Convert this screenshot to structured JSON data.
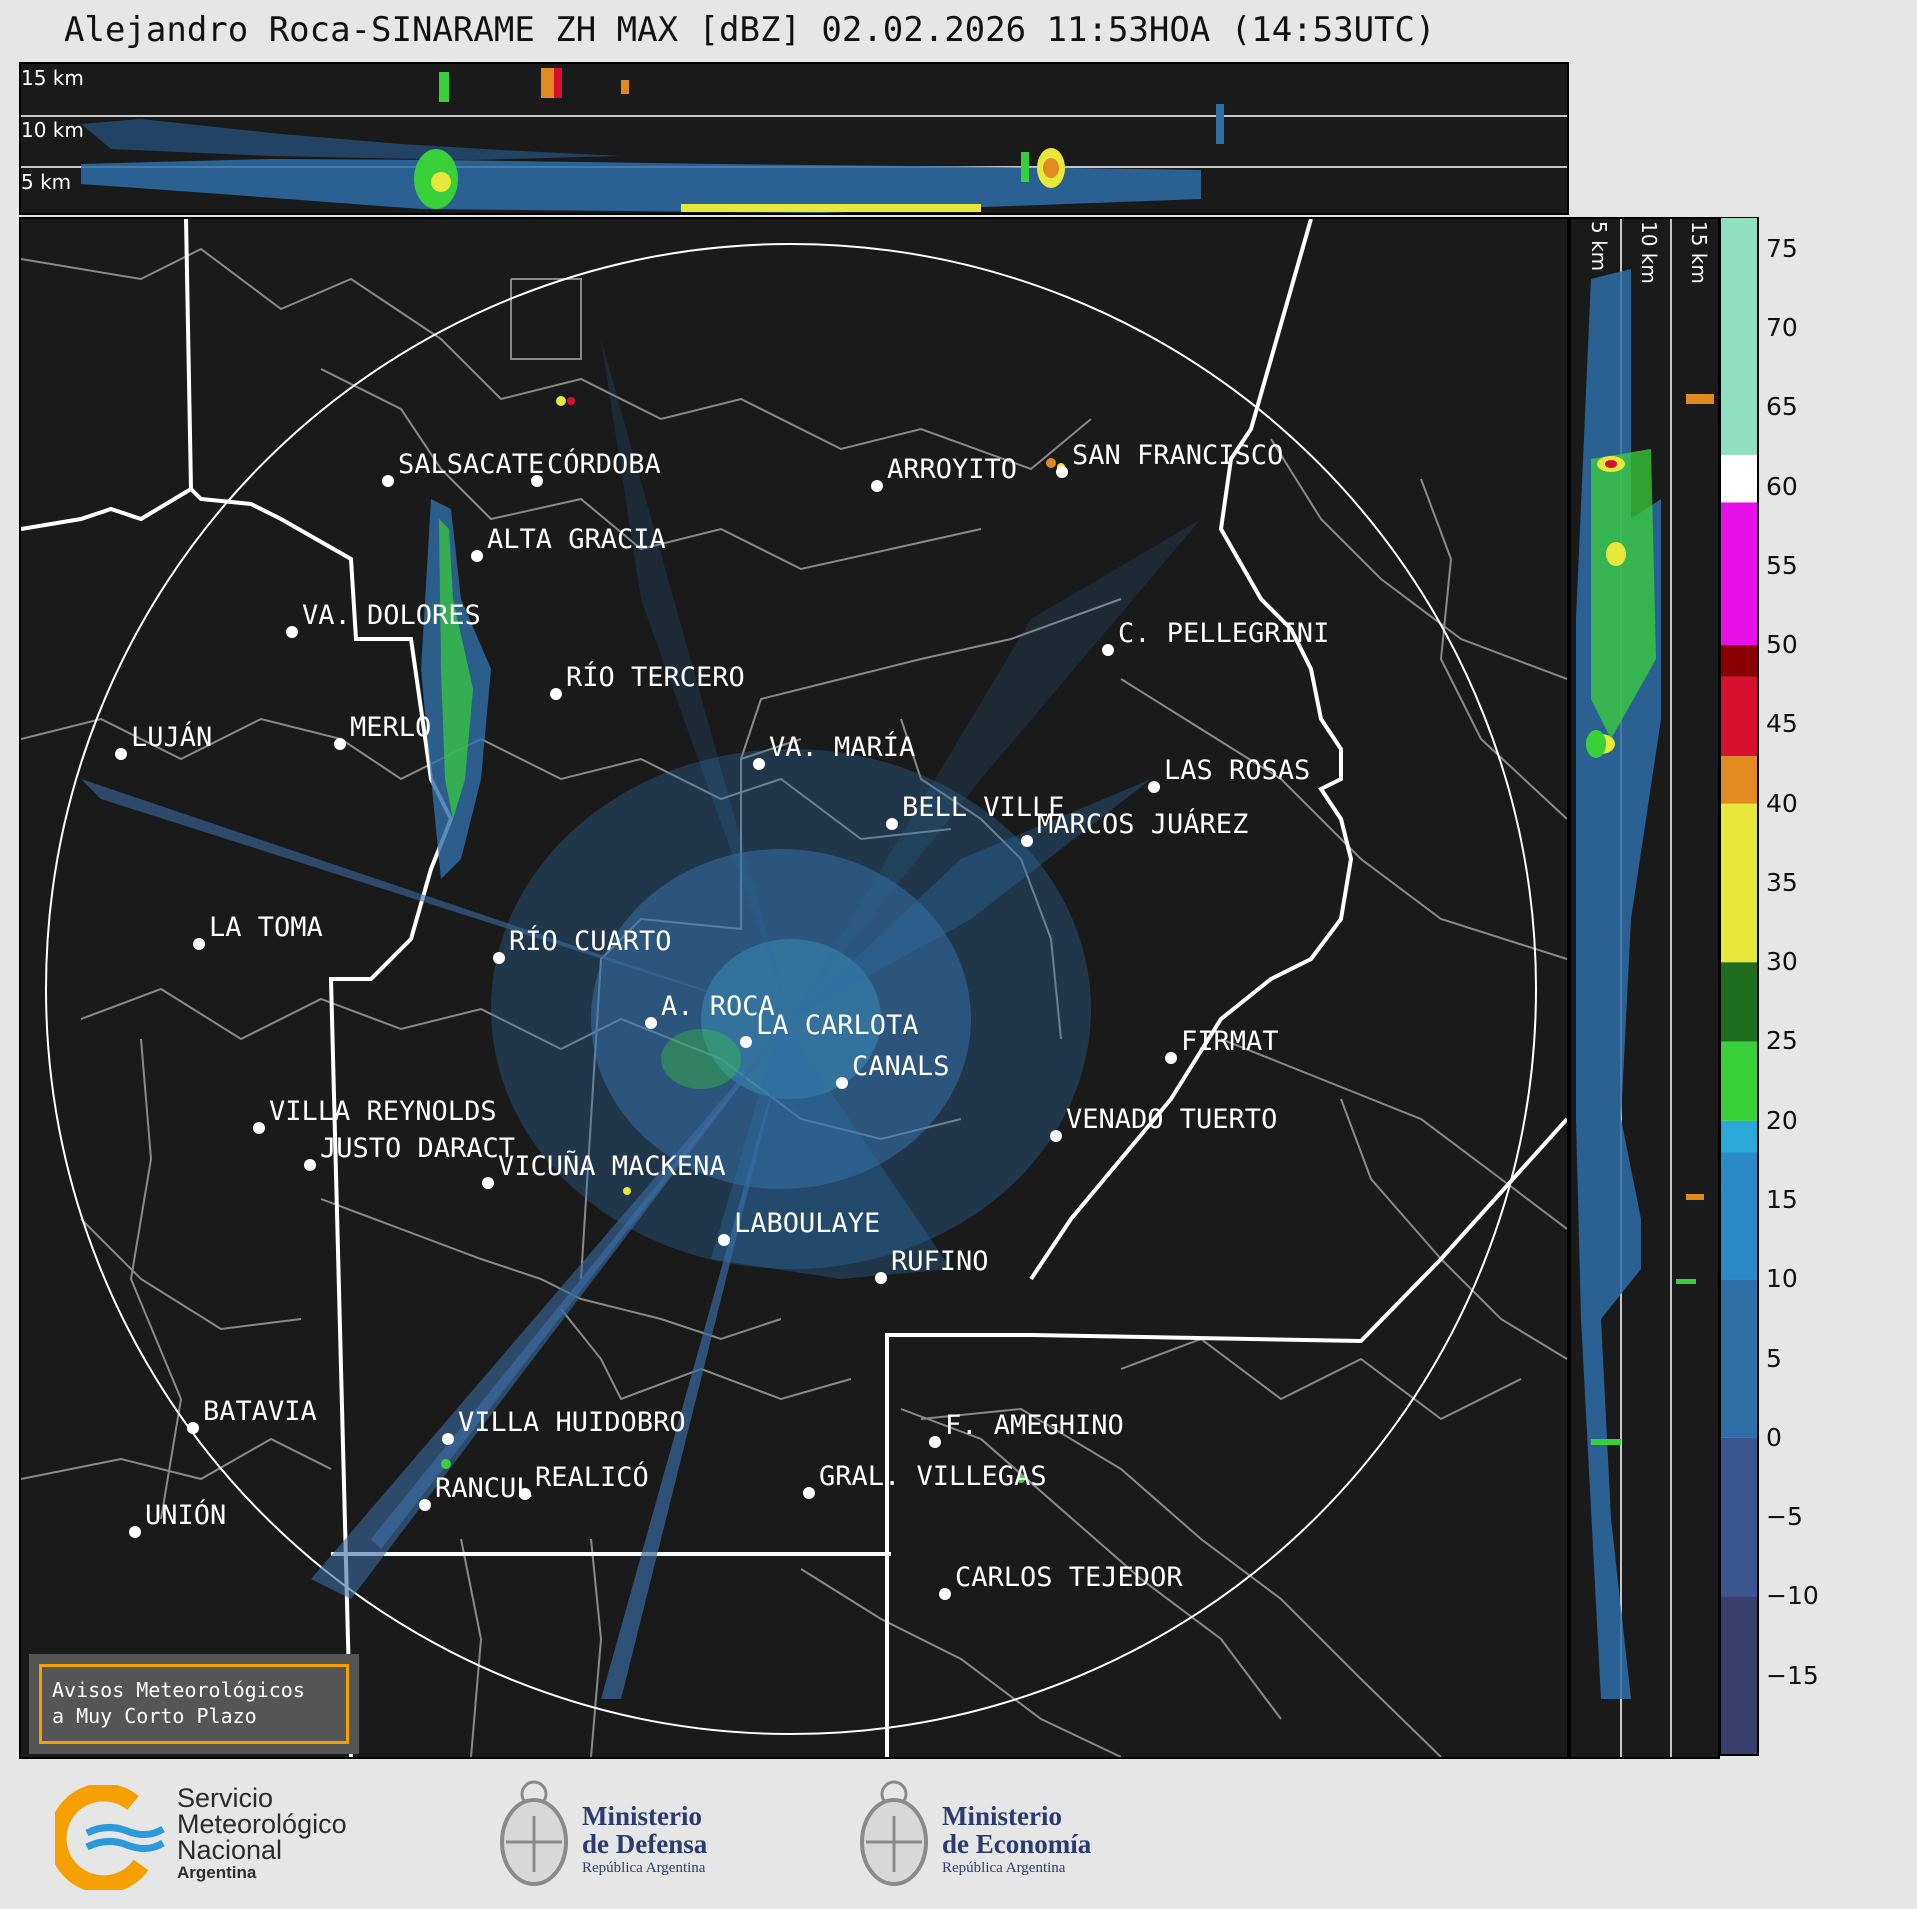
{
  "title": "Alejandro Roca-SINARAME ZH MAX [dBZ] 02.02.2026 11:53HOA (14:53UTC)",
  "top_panel": {
    "altitude_labels": [
      "15 km",
      "10 km",
      "5 km"
    ]
  },
  "side_panel": {
    "altitude_labels": [
      "5 km",
      "10 km",
      "15 km"
    ]
  },
  "colorbar": {
    "unit": "dBZ",
    "ticks": [
      "75",
      "70",
      "65",
      "60",
      "55",
      "50",
      "45",
      "40",
      "35",
      "30",
      "25",
      "20",
      "15",
      "10",
      "5",
      "0",
      "−5",
      "−10",
      "−15"
    ],
    "range": [
      -20,
      77
    ],
    "colors": {
      "low": "#3a3f6e",
      "blue": "#2f6fa8",
      "cyan": "#2aa8d8",
      "green": "#3ad03a",
      "dark_green": "#1f6e1f",
      "yellow": "#e8e83a",
      "orange": "#e08a20",
      "red": "#d81030",
      "dark_red": "#8a0000",
      "magenta": "#e810e8",
      "white": "#ffffff",
      "mint": "#8ee0c0"
    }
  },
  "cities": [
    {
      "name": "SALSACATE"
    },
    {
      "name": "CÓRDOBA"
    },
    {
      "name": "ARROYITO"
    },
    {
      "name": "SAN FRANCISCO"
    },
    {
      "name": "ALTA GRACIA"
    },
    {
      "name": "VA. DOLORES"
    },
    {
      "name": "C. PELLEGRINI"
    },
    {
      "name": "RÍO TERCERO"
    },
    {
      "name": "LUJÁN"
    },
    {
      "name": "MERLO"
    },
    {
      "name": "VA. MARÍA"
    },
    {
      "name": "LAS ROSAS"
    },
    {
      "name": "BELL VILLE"
    },
    {
      "name": "MARCOS JUÁREZ"
    },
    {
      "name": "LA TOMA"
    },
    {
      "name": "RÍO CUARTO"
    },
    {
      "name": "A. ROCA"
    },
    {
      "name": "LA CARLOTA"
    },
    {
      "name": "FIRMAT"
    },
    {
      "name": "CANALS"
    },
    {
      "name": "VILLA REYNOLDS"
    },
    {
      "name": "VENADO TUERTO"
    },
    {
      "name": "JUSTO DARACT"
    },
    {
      "name": "VICUÑA MACKENA"
    },
    {
      "name": "LABOULAYE"
    },
    {
      "name": "RUFINO"
    },
    {
      "name": "BATAVIA"
    },
    {
      "name": "VILLA HUIDOBRO"
    },
    {
      "name": "F. AMEGHINO"
    },
    {
      "name": "RANCUL"
    },
    {
      "name": "REALICÓ"
    },
    {
      "name": "GRAL. VILLEGAS"
    },
    {
      "name": "UNIÓN"
    },
    {
      "name": "CARLOS TEJEDOR"
    }
  ],
  "legend_box": {
    "line1": "Avisos Meteorológicos",
    "line2": "a Muy Corto Plazo"
  },
  "footer": {
    "smn": {
      "line1": "Servicio",
      "line2": "Meteorológico",
      "line3": "Nacional",
      "line4": "Argentina"
    },
    "defensa": {
      "line1": "Ministerio",
      "line2": "de Defensa",
      "line3": "República Argentina"
    },
    "economia": {
      "line1": "Ministerio",
      "line2": "de Economía",
      "line3": "República Argentina"
    }
  }
}
